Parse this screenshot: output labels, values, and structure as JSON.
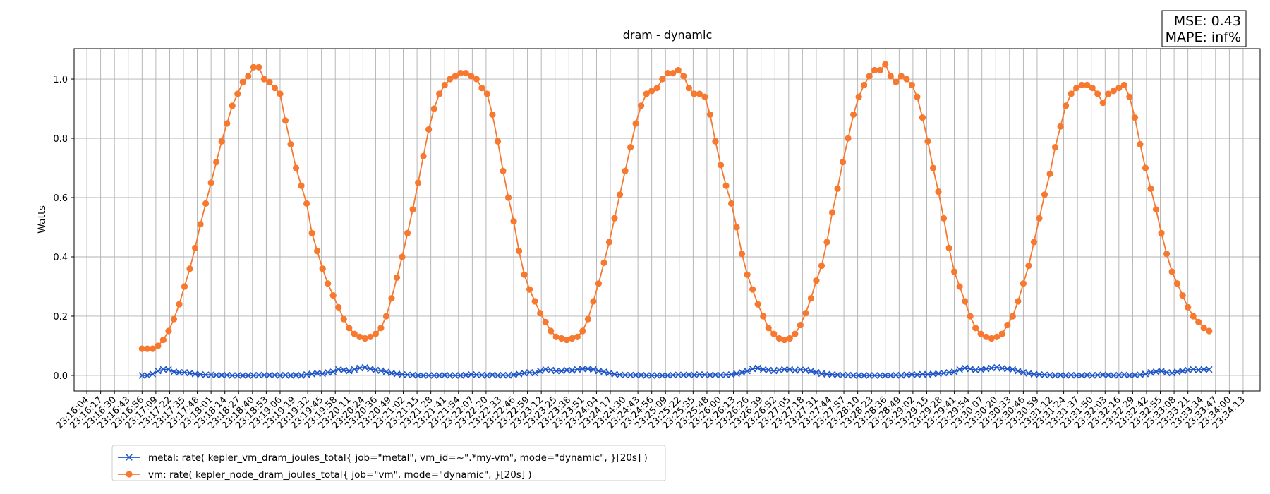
{
  "chart_data": {
    "type": "line",
    "title": "dram - dynamic",
    "y_label": "Watts",
    "annotation": [
      "MSE: 0.43",
      "MAPE: inf%"
    ],
    "grid": true,
    "xlim": [
      "23:15:52",
      "23:34:29"
    ],
    "ylim": [
      -0.0525,
      1.1025
    ],
    "yticks": [
      {
        "value": 0,
        "label": "0.0"
      },
      0.2,
      0.4,
      0.6,
      0.8,
      {
        "value": 1,
        "label": "1.0"
      }
    ],
    "xticks": [
      "23:16:04",
      "23:16:17",
      "23:16:30",
      "23:16:43",
      "23:16:56",
      "23:17:09",
      "23:17:22",
      "23:17:35",
      "23:17:48",
      "23:18:01",
      "23:18:14",
      "23:18:27",
      "23:18:40",
      "23:18:53",
      "23:19:06",
      "23:19:19",
      "23:19:32",
      "23:19:45",
      "23:19:58",
      "23:20:11",
      "23:20:24",
      "23:20:36",
      "23:20:49",
      "23:21:02",
      "23:21:15",
      "23:21:28",
      "23:21:41",
      "23:21:54",
      "23:22:07",
      "23:22:20",
      "23:22:33",
      "23:22:46",
      "23:22:59",
      "23:23:12",
      "23:23:25",
      "23:23:38",
      "23:23:51",
      "23:24:04",
      "23:24:17",
      "23:24:30",
      "23:24:43",
      "23:24:56",
      "23:25:09",
      "23:25:22",
      "23:25:35",
      "23:25:48",
      "23:26:00",
      "23:26:13",
      "23:26:26",
      "23:26:39",
      "23:26:52",
      "23:27:05",
      "23:27:18",
      "23:27:31",
      "23:27:44",
      "23:27:57",
      "23:28:10",
      "23:28:23",
      "23:28:36",
      "23:28:49",
      "23:29:02",
      "23:29:15",
      "23:29:28",
      "23:29:41",
      "23:29:54",
      "23:30:07",
      "23:30:20",
      "23:30:33",
      "23:30:46",
      "23:30:59",
      "23:31:12",
      "23:31:24",
      "23:31:37",
      "23:31:50",
      "23:32:03",
      "23:32:16",
      "23:32:29",
      "23:32:42",
      "23:32:55",
      "23:33:08",
      "23:33:21",
      "23:33:34",
      "23:33:47",
      "23:34:00",
      "23:34:13"
    ],
    "x": [
      "23:16:56",
      "23:17:01",
      "23:17:06",
      "23:17:11",
      "23:17:16",
      "23:17:21",
      "23:17:26",
      "23:17:31",
      "23:17:36",
      "23:17:41",
      "23:17:46",
      "23:17:51",
      "23:17:56",
      "23:18:01",
      "23:18:06",
      "23:18:11",
      "23:18:16",
      "23:18:21",
      "23:18:26",
      "23:18:31",
      "23:18:36",
      "23:18:41",
      "23:18:46",
      "23:18:51",
      "23:18:56",
      "23:19:01",
      "23:19:06",
      "23:19:11",
      "23:19:16",
      "23:19:21",
      "23:19:26",
      "23:19:31",
      "23:19:36",
      "23:19:41",
      "23:19:46",
      "23:19:51",
      "23:19:56",
      "23:20:01",
      "23:20:06",
      "23:20:11",
      "23:20:16",
      "23:20:21",
      "23:20:26",
      "23:20:31",
      "23:20:36",
      "23:20:41",
      "23:20:46",
      "23:20:51",
      "23:20:56",
      "23:21:01",
      "23:21:06",
      "23:21:11",
      "23:21:16",
      "23:21:21",
      "23:21:26",
      "23:21:31",
      "23:21:36",
      "23:21:41",
      "23:21:46",
      "23:21:51",
      "23:21:56",
      "23:22:01",
      "23:22:06",
      "23:22:11",
      "23:22:16",
      "23:22:21",
      "23:22:26",
      "23:22:31",
      "23:22:36",
      "23:22:41",
      "23:22:46",
      "23:22:51",
      "23:22:56",
      "23:23:01",
      "23:23:06",
      "23:23:11",
      "23:23:16",
      "23:23:21",
      "23:23:26",
      "23:23:31",
      "23:23:36",
      "23:23:41",
      "23:23:46",
      "23:23:51",
      "23:23:56",
      "23:24:01",
      "23:24:06",
      "23:24:11",
      "23:24:16",
      "23:24:21",
      "23:24:26",
      "23:24:31",
      "23:24:36",
      "23:24:41",
      "23:24:46",
      "23:24:51",
      "23:24:56",
      "23:25:01",
      "23:25:06",
      "23:25:11",
      "23:25:16",
      "23:25:21",
      "23:25:26",
      "23:25:31",
      "23:25:36",
      "23:25:41",
      "23:25:46",
      "23:25:51",
      "23:25:56",
      "23:26:01",
      "23:26:06",
      "23:26:11",
      "23:26:16",
      "23:26:21",
      "23:26:26",
      "23:26:31",
      "23:26:36",
      "23:26:41",
      "23:26:46",
      "23:26:51",
      "23:26:56",
      "23:27:01",
      "23:27:06",
      "23:27:11",
      "23:27:16",
      "23:27:21",
      "23:27:26",
      "23:27:31",
      "23:27:36",
      "23:27:41",
      "23:27:46",
      "23:27:51",
      "23:27:56",
      "23:28:01",
      "23:28:06",
      "23:28:11",
      "23:28:16",
      "23:28:21",
      "23:28:26",
      "23:28:31",
      "23:28:36",
      "23:28:41",
      "23:28:46",
      "23:28:51",
      "23:28:56",
      "23:29:01",
      "23:29:06",
      "23:29:11",
      "23:29:16",
      "23:29:21",
      "23:29:26",
      "23:29:31",
      "23:29:36",
      "23:29:41",
      "23:29:46",
      "23:29:51",
      "23:29:56",
      "23:30:01",
      "23:30:06",
      "23:30:11",
      "23:30:16",
      "23:30:21",
      "23:30:26",
      "23:30:31",
      "23:30:36",
      "23:30:41",
      "23:30:46",
      "23:30:51",
      "23:30:56",
      "23:31:01",
      "23:31:06",
      "23:31:11",
      "23:31:16",
      "23:31:21",
      "23:31:26",
      "23:31:31",
      "23:31:36",
      "23:31:41",
      "23:31:46",
      "23:31:51",
      "23:31:56",
      "23:32:01",
      "23:32:06",
      "23:32:11",
      "23:32:16",
      "23:32:21",
      "23:32:26",
      "23:32:31",
      "23:32:36",
      "23:32:41",
      "23:32:46",
      "23:32:51",
      "23:32:56",
      "23:33:01",
      "23:33:06",
      "23:33:11",
      "23:33:16",
      "23:33:21",
      "23:33:26",
      "23:33:31",
      "23:33:36",
      "23:33:41"
    ],
    "series": [
      {
        "name": "metal: rate( kepler_vm_dram_joules_total{ job=\"metal\", vm_id=~\".*my-vm\", mode=\"dynamic\", }[20s] )",
        "color": "#1f56c8",
        "marker": "x",
        "values": [
          0,
          0,
          0.005,
          0.015,
          0.02,
          0.02,
          0.012,
          0.01,
          0.01,
          0.008,
          0.005,
          0.003,
          0.002,
          0.002,
          0.001,
          0.001,
          0.001,
          0,
          0,
          0,
          0,
          0,
          0.001,
          0.001,
          0.001,
          0.001,
          0,
          0.001,
          0,
          0.001,
          0,
          0.003,
          0.005,
          0.008,
          0.006,
          0.01,
          0.012,
          0.02,
          0.018,
          0.015,
          0.02,
          0.025,
          0.027,
          0.022,
          0.018,
          0.016,
          0.012,
          0.008,
          0.005,
          0.003,
          0.002,
          0.001,
          0,
          0,
          0,
          0,
          0,
          0.001,
          0,
          0,
          0,
          0.001,
          0.003,
          0.002,
          0.001,
          0,
          0.002,
          0,
          0.001,
          0,
          0.002,
          0.005,
          0.008,
          0.01,
          0.008,
          0.015,
          0.02,
          0.018,
          0.015,
          0.015,
          0.018,
          0.017,
          0.02,
          0.022,
          0.022,
          0.02,
          0.015,
          0.012,
          0.008,
          0.004,
          0.002,
          0.001,
          0.001,
          0.001,
          0.001,
          0,
          0,
          0,
          0,
          0,
          0.001,
          0.002,
          0.001,
          0.002,
          0.001,
          0.003,
          0.002,
          0.001,
          0.002,
          0.001,
          0.002,
          0.003,
          0.006,
          0.01,
          0.015,
          0.022,
          0.025,
          0.02,
          0.018,
          0.015,
          0.018,
          0.02,
          0.02,
          0.017,
          0.019,
          0.018,
          0.015,
          0.01,
          0.006,
          0.004,
          0.003,
          0.002,
          0.001,
          0.001,
          0,
          0,
          0,
          0,
          0,
          0,
          0,
          0,
          0.001,
          0,
          0.002,
          0.003,
          0.002,
          0.004,
          0.003,
          0.005,
          0.006,
          0.008,
          0.01,
          0.012,
          0.02,
          0.025,
          0.022,
          0.018,
          0.02,
          0.022,
          0.025,
          0.027,
          0.024,
          0.022,
          0.02,
          0.015,
          0.01,
          0.007,
          0.004,
          0.003,
          0.002,
          0.001,
          0,
          0.001,
          0,
          0.001,
          0,
          0,
          0.001,
          0,
          0.001,
          0.002,
          0.001,
          0,
          0.001,
          0.002,
          0,
          0.001,
          0.002,
          0.005,
          0.01,
          0.012,
          0.015,
          0.01,
          0.008,
          0.012,
          0.015,
          0.018,
          0.02,
          0.018,
          0.02,
          0.02
        ]
      },
      {
        "name": "vm: rate( kepler_node_dram_joules_total{ job=\"vm\", mode=\"dynamic\", }[20s] )",
        "color": "#f7792f",
        "marker": "o",
        "values": [
          0.09,
          0.09,
          0.09,
          0.1,
          0.12,
          0.15,
          0.19,
          0.24,
          0.3,
          0.36,
          0.43,
          0.51,
          0.58,
          0.65,
          0.72,
          0.79,
          0.85,
          0.91,
          0.95,
          0.99,
          1.01,
          1.04,
          1.04,
          1.0,
          0.99,
          0.97,
          0.95,
          0.86,
          0.78,
          0.7,
          0.64,
          0.58,
          0.48,
          0.42,
          0.36,
          0.31,
          0.27,
          0.23,
          0.19,
          0.16,
          0.14,
          0.13,
          0.125,
          0.13,
          0.14,
          0.16,
          0.2,
          0.26,
          0.33,
          0.4,
          0.48,
          0.56,
          0.65,
          0.74,
          0.83,
          0.9,
          0.95,
          0.98,
          1.0,
          1.01,
          1.02,
          1.02,
          1.01,
          1.0,
          0.97,
          0.95,
          0.88,
          0.79,
          0.69,
          0.6,
          0.52,
          0.42,
          0.34,
          0.29,
          0.25,
          0.21,
          0.18,
          0.15,
          0.13,
          0.125,
          0.12,
          0.125,
          0.13,
          0.15,
          0.19,
          0.25,
          0.31,
          0.38,
          0.45,
          0.53,
          0.61,
          0.69,
          0.77,
          0.85,
          0.91,
          0.95,
          0.96,
          0.97,
          1.0,
          1.02,
          1.02,
          1.03,
          1.01,
          0.97,
          0.95,
          0.95,
          0.94,
          0.88,
          0.79,
          0.71,
          0.64,
          0.58,
          0.5,
          0.41,
          0.34,
          0.29,
          0.24,
          0.2,
          0.16,
          0.14,
          0.125,
          0.12,
          0.125,
          0.14,
          0.17,
          0.21,
          0.26,
          0.32,
          0.37,
          0.45,
          0.55,
          0.63,
          0.72,
          0.8,
          0.88,
          0.94,
          0.98,
          1.01,
          1.03,
          1.03,
          1.05,
          1.01,
          0.99,
          1.01,
          1.0,
          0.98,
          0.94,
          0.87,
          0.79,
          0.7,
          0.62,
          0.53,
          0.43,
          0.35,
          0.3,
          0.25,
          0.2,
          0.16,
          0.14,
          0.13,
          0.125,
          0.13,
          0.14,
          0.17,
          0.2,
          0.25,
          0.31,
          0.37,
          0.45,
          0.53,
          0.61,
          0.68,
          0.77,
          0.84,
          0.91,
          0.95,
          0.97,
          0.98,
          0.98,
          0.97,
          0.95,
          0.92,
          0.95,
          0.96,
          0.97,
          0.98,
          0.94,
          0.87,
          0.78,
          0.7,
          0.63,
          0.56,
          0.48,
          0.41,
          0.35,
          0.31,
          0.27,
          0.23,
          0.2,
          0.18,
          0.16,
          0.15
        ]
      }
    ]
  }
}
